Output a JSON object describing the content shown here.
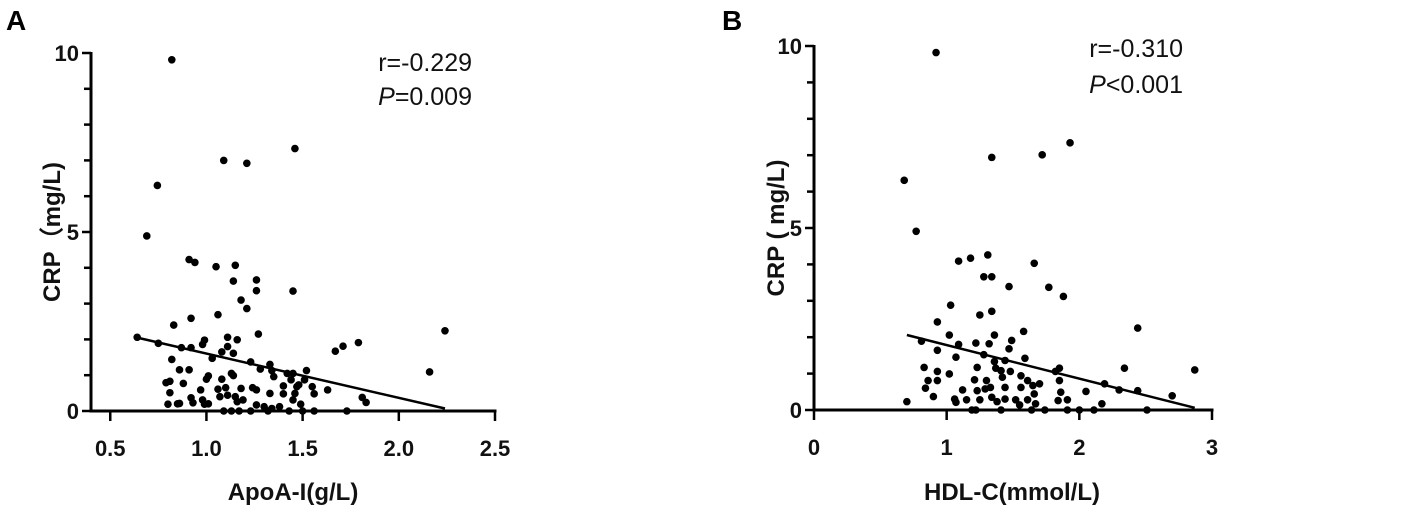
{
  "chart_data": [
    {
      "type": "scatter",
      "panel": "A",
      "xlabel": "ApoA-I(g/L)",
      "ylabel": "CRP（mg/L)",
      "xlim": [
        0.4,
        2.5
      ],
      "ylim": [
        0,
        10
      ],
      "xticks": [
        "0.5",
        "1.0",
        "1.5",
        "2.0",
        "2.5"
      ],
      "xtick_values": [
        0.5,
        1.0,
        1.5,
        2.0,
        2.5
      ],
      "yticks": [
        "0",
        "5",
        "10"
      ],
      "ytick_values": [
        0,
        5,
        10
      ],
      "annotations": [
        "r=-0.229",
        "P",
        "=0.009"
      ],
      "fit_line": [
        [
          0.64,
          2.05
        ],
        [
          2.24,
          0.07
        ]
      ],
      "points": [
        [
          0.82,
          9.81
        ],
        [
          0.745,
          6.3
        ],
        [
          0.69,
          4.89
        ],
        [
          1.09,
          7.0
        ],
        [
          1.21,
          6.92
        ],
        [
          1.46,
          7.33
        ],
        [
          0.91,
          4.23
        ],
        [
          0.94,
          4.15
        ],
        [
          1.05,
          4.03
        ],
        [
          1.15,
          4.07
        ],
        [
          1.14,
          3.63
        ],
        [
          1.26,
          3.66
        ],
        [
          1.26,
          3.36
        ],
        [
          1.45,
          3.35
        ],
        [
          1.18,
          3.1
        ],
        [
          1.21,
          2.86
        ],
        [
          1.06,
          2.69
        ],
        [
          0.92,
          2.59
        ],
        [
          0.83,
          2.4
        ],
        [
          1.27,
          2.15
        ],
        [
          2.24,
          2.24
        ],
        [
          0.64,
          2.06
        ],
        [
          1.79,
          1.91
        ],
        [
          1.71,
          1.81
        ],
        [
          1.67,
          1.67
        ],
        [
          2.16,
          1.09
        ],
        [
          1.81,
          0.38
        ],
        [
          1.83,
          0.24
        ],
        [
          1.73,
          0
        ],
        [
          0.75,
          1.89
        ],
        [
          0.87,
          1.77
        ],
        [
          0.92,
          1.77
        ],
        [
          0.99,
          1.98
        ],
        [
          0.98,
          1.86
        ],
        [
          1.11,
          2.06
        ],
        [
          1.16,
          1.99
        ],
        [
          1.08,
          1.65
        ],
        [
          1.11,
          1.8
        ],
        [
          1.14,
          1.61
        ],
        [
          1.03,
          1.47
        ],
        [
          0.82,
          1.44
        ],
        [
          0.86,
          1.15
        ],
        [
          0.91,
          1.15
        ],
        [
          0.79,
          0.79
        ],
        [
          0.81,
          0.83
        ],
        [
          0.81,
          0.51
        ],
        [
          0.88,
          0.77
        ],
        [
          0.8,
          0.19
        ],
        [
          0.85,
          0.2
        ],
        [
          0.86,
          0.21
        ],
        [
          0.92,
          0.37
        ],
        [
          0.93,
          0.23
        ],
        [
          0.97,
          0.59
        ],
        [
          0.98,
          0.31
        ],
        [
          0.99,
          0.19
        ],
        [
          1.01,
          0.2
        ],
        [
          1.0,
          0.89
        ],
        [
          1.01,
          0.98
        ],
        [
          1.08,
          0.89
        ],
        [
          1.06,
          0.61
        ],
        [
          1.07,
          0.4
        ],
        [
          1.1,
          0.65
        ],
        [
          1.11,
          0.44
        ],
        [
          1.13,
          1.05
        ],
        [
          1.14,
          0.99
        ],
        [
          1.15,
          0.4
        ],
        [
          1.16,
          0.26
        ],
        [
          1.18,
          0.63
        ],
        [
          1.19,
          0.31
        ],
        [
          1.09,
          0
        ],
        [
          1.13,
          0
        ],
        [
          1.17,
          0
        ],
        [
          1.23,
          1.37
        ],
        [
          1.24,
          0.65
        ],
        [
          1.26,
          0.59
        ],
        [
          1.26,
          0.17
        ],
        [
          1.28,
          1.17
        ],
        [
          1.3,
          0.12
        ],
        [
          1.33,
          1.3
        ],
        [
          1.34,
          1.13
        ],
        [
          1.35,
          0.96
        ],
        [
          1.33,
          0.49
        ],
        [
          1.32,
          0
        ],
        [
          1.34,
          0.07
        ],
        [
          1.38,
          0.12
        ],
        [
          1.4,
          0.7
        ],
        [
          1.4,
          0.48
        ],
        [
          1.42,
          1.05
        ],
        [
          1.44,
          0.87
        ],
        [
          1.45,
          1.05
        ],
        [
          1.45,
          0.31
        ],
        [
          1.46,
          0.49
        ],
        [
          1.47,
          0.68
        ],
        [
          1.48,
          0.73
        ],
        [
          1.49,
          0.19
        ],
        [
          1.5,
          0
        ],
        [
          1.52,
          1.13
        ],
        [
          1.51,
          0.87
        ],
        [
          1.55,
          0.68
        ],
        [
          1.56,
          0.48
        ],
        [
          1.56,
          0
        ],
        [
          1.63,
          0.59
        ],
        [
          1.43,
          0
        ],
        [
          1.23,
          0
        ]
      ]
    },
    {
      "type": "scatter",
      "panel": "B",
      "xlabel": "HDL-C(mmol/L)",
      "ylabel": "CRP ( mg/L)",
      "xlim": [
        0,
        3
      ],
      "ylim": [
        0,
        10
      ],
      "xticks": [
        "0",
        "1",
        "2",
        "3"
      ],
      "xtick_values": [
        0,
        1,
        2,
        3
      ],
      "yticks": [
        "0",
        "5",
        "10"
      ],
      "ytick_values": [
        0,
        5,
        10
      ],
      "annotations": [
        "r=-0.310",
        "P",
        "<0.001"
      ],
      "fit_line": [
        [
          0.7,
          2.06
        ],
        [
          2.87,
          0.06
        ]
      ],
      "points": [
        [
          0.92,
          9.82
        ],
        [
          0.68,
          6.31
        ],
        [
          0.77,
          4.91
        ],
        [
          1.34,
          6.94
        ],
        [
          1.72,
          7.01
        ],
        [
          1.93,
          7.34
        ],
        [
          1.31,
          4.26
        ],
        [
          1.18,
          4.17
        ],
        [
          1.09,
          4.09
        ],
        [
          1.66,
          4.03
        ],
        [
          1.28,
          3.66
        ],
        [
          1.34,
          3.66
        ],
        [
          1.47,
          3.39
        ],
        [
          1.77,
          3.37
        ],
        [
          1.88,
          3.12
        ],
        [
          1.03,
          2.88
        ],
        [
          1.25,
          2.61
        ],
        [
          1.34,
          2.71
        ],
        [
          0.93,
          2.42
        ],
        [
          2.44,
          2.25
        ],
        [
          1.58,
          2.16
        ],
        [
          1.02,
          2.06
        ],
        [
          1.36,
          2.06
        ],
        [
          0.81,
          1.89
        ],
        [
          1.09,
          1.8
        ],
        [
          1.22,
          1.84
        ],
        [
          1.32,
          1.82
        ],
        [
          1.49,
          1.91
        ],
        [
          1.47,
          1.68
        ],
        [
          0.93,
          1.64
        ],
        [
          1.28,
          1.52
        ],
        [
          1.07,
          1.45
        ],
        [
          1.59,
          1.42
        ],
        [
          1.36,
          1.33
        ],
        [
          1.44,
          1.36
        ],
        [
          0.83,
          1.17
        ],
        [
          1.23,
          1.17
        ],
        [
          1.37,
          1.15
        ],
        [
          1.41,
          1.08
        ],
        [
          1.48,
          1.06
        ],
        [
          1.85,
          1.15
        ],
        [
          1.82,
          1.06
        ],
        [
          2.34,
          1.15
        ],
        [
          2.87,
          1.1
        ],
        [
          0.93,
          1.06
        ],
        [
          1.02,
          0.99
        ],
        [
          0.86,
          0.81
        ],
        [
          0.93,
          0.81
        ],
        [
          1.21,
          0.83
        ],
        [
          1.3,
          0.81
        ],
        [
          1.42,
          0.9
        ],
        [
          1.56,
          0.94
        ],
        [
          1.61,
          0.81
        ],
        [
          1.7,
          0.72
        ],
        [
          1.65,
          0.67
        ],
        [
          1.85,
          0.81
        ],
        [
          2.19,
          0.72
        ],
        [
          0.84,
          0.6
        ],
        [
          1.12,
          0.55
        ],
        [
          1.23,
          0.53
        ],
        [
          1.29,
          0.58
        ],
        [
          1.33,
          0.62
        ],
        [
          1.44,
          0.62
        ],
        [
          1.56,
          0.62
        ],
        [
          1.66,
          0.44
        ],
        [
          1.86,
          0.49
        ],
        [
          2.05,
          0.51
        ],
        [
          2.3,
          0.55
        ],
        [
          2.44,
          0.53
        ],
        [
          2.7,
          0.39
        ],
        [
          0.9,
          0.37
        ],
        [
          1.06,
          0.3
        ],
        [
          1.15,
          0.28
        ],
        [
          1.25,
          0.28
        ],
        [
          1.34,
          0.35
        ],
        [
          1.38,
          0.23
        ],
        [
          1.44,
          0.3
        ],
        [
          1.52,
          0.28
        ],
        [
          1.61,
          0.28
        ],
        [
          1.67,
          0.17
        ],
        [
          1.84,
          0.26
        ],
        [
          1.91,
          0.28
        ],
        [
          2.17,
          0.17
        ],
        [
          0.7,
          0.23
        ],
        [
          1.07,
          0.21
        ],
        [
          1.55,
          0.14
        ],
        [
          1.19,
          0
        ],
        [
          1.22,
          0
        ],
        [
          1.41,
          0
        ],
        [
          1.64,
          0
        ],
        [
          1.74,
          0
        ],
        [
          1.91,
          0
        ],
        [
          2.0,
          0
        ],
        [
          2.11,
          0
        ],
        [
          2.51,
          0
        ]
      ]
    }
  ]
}
